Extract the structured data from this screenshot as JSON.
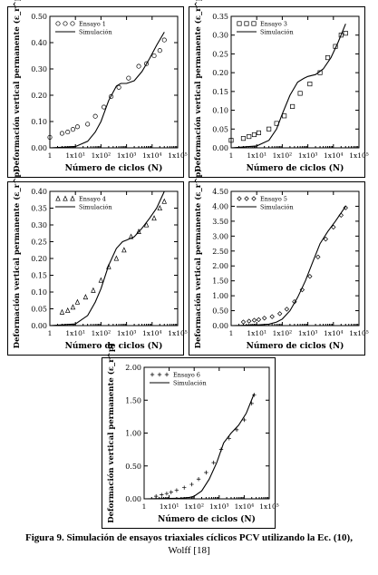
{
  "chart_data": [
    {
      "type": "line",
      "ylabel": "Deformación vertical permanente (ε_r^p)",
      "xlabel": "Número de ciclos (N)",
      "xscale": "log",
      "xlim": [
        1,
        100000
      ],
      "ylim": [
        0,
        0.5
      ],
      "yticks": [
        "0.00",
        "0.10",
        "0.20",
        "0.30",
        "0.40",
        "0.50"
      ],
      "xticks": [
        "1",
        "1x10¹",
        "1x10²",
        "1x10³",
        "1x10⁴",
        "1x10⁵"
      ],
      "legend_position": "top-left",
      "series": [
        {
          "name": "Ensayo 1",
          "marker": "circle",
          "x": [
            1,
            3,
            5,
            8,
            12,
            30,
            60,
            130,
            250,
            500,
            1200,
            3000,
            6000,
            12000,
            20000,
            30000
          ],
          "y": [
            0.04,
            0.055,
            0.06,
            0.07,
            0.08,
            0.09,
            0.12,
            0.155,
            0.195,
            0.23,
            0.265,
            0.31,
            0.32,
            0.35,
            0.37,
            0.41
          ]
        },
        {
          "name": "Simulación",
          "marker": "line",
          "x": [
            1,
            10,
            30,
            60,
            100,
            200,
            400,
            600,
            1000,
            2000,
            4000,
            8000,
            15000,
            30000
          ],
          "y": [
            0.0,
            0.005,
            0.025,
            0.06,
            0.1,
            0.18,
            0.235,
            0.245,
            0.245,
            0.255,
            0.29,
            0.34,
            0.39,
            0.44
          ]
        }
      ]
    },
    {
      "type": "line",
      "ylabel": "Deformación vertical permanente (ε_r^p)",
      "xlabel": "Número de ciclos (N)",
      "xscale": "log",
      "xlim": [
        1,
        100000
      ],
      "ylim": [
        0,
        0.35
      ],
      "yticks": [
        "0.00",
        "0.05",
        "0.10",
        "0.15",
        "0.20",
        "0.25",
        "0.30",
        "0.35"
      ],
      "xticks": [
        "1",
        "1x10¹",
        "1x10²",
        "1x10³",
        "1x10⁴",
        "1x10⁵"
      ],
      "legend_position": "top-left",
      "series": [
        {
          "name": "Ensayo 3",
          "marker": "square",
          "x": [
            1,
            3,
            5,
            8,
            12,
            30,
            60,
            120,
            250,
            500,
            1200,
            3000,
            6000,
            12000,
            20000,
            30000
          ],
          "y": [
            0.02,
            0.025,
            0.03,
            0.035,
            0.04,
            0.05,
            0.065,
            0.085,
            0.11,
            0.145,
            0.17,
            0.2,
            0.24,
            0.27,
            0.3,
            0.305
          ]
        },
        {
          "name": "Simulación",
          "marker": "line",
          "x": [
            1,
            10,
            30,
            60,
            100,
            200,
            400,
            700,
            1000,
            2000,
            4000,
            8000,
            15000,
            30000
          ],
          "y": [
            0.0,
            0.005,
            0.02,
            0.05,
            0.09,
            0.14,
            0.175,
            0.185,
            0.19,
            0.195,
            0.21,
            0.24,
            0.28,
            0.33
          ]
        }
      ]
    },
    {
      "type": "line",
      "ylabel": "Deformación vertical permanente (ε_r^p)",
      "xlabel": "Número de ciclos (N)",
      "xscale": "log",
      "xlim": [
        1,
        100000
      ],
      "ylim": [
        0,
        0.4
      ],
      "yticks": [
        "0.00",
        "0.05",
        "0.10",
        "0.15",
        "0.20",
        "0.25",
        "0.30",
        "0.35",
        "0.40"
      ],
      "xticks": [
        "1",
        "1x10¹",
        "1x10²",
        "1x10³",
        "1x10⁴",
        "1x10⁵"
      ],
      "legend_position": "top-left",
      "series": [
        {
          "name": "Ensayo 4",
          "marker": "triangle",
          "x": [
            3,
            5,
            8,
            12,
            25,
            50,
            100,
            200,
            400,
            800,
            1500,
            3000,
            6000,
            12000,
            20000,
            30000
          ],
          "y": [
            0.04,
            0.045,
            0.055,
            0.07,
            0.085,
            0.105,
            0.135,
            0.175,
            0.2,
            0.225,
            0.265,
            0.28,
            0.3,
            0.32,
            0.35,
            0.37
          ]
        },
        {
          "name": "Simulación",
          "marker": "line",
          "x": [
            1,
            10,
            30,
            60,
            100,
            200,
            400,
            700,
            1000,
            2000,
            4000,
            8000,
            15000,
            30000
          ],
          "y": [
            0.0,
            0.005,
            0.03,
            0.07,
            0.11,
            0.18,
            0.23,
            0.25,
            0.255,
            0.265,
            0.29,
            0.32,
            0.35,
            0.4
          ]
        }
      ]
    },
    {
      "type": "line",
      "ylabel": "Deformación vertical permanente (ε_r^p)",
      "xlabel": "Número de ciclos (N)",
      "xscale": "log",
      "xlim": [
        1,
        100000
      ],
      "ylim": [
        0,
        4.5
      ],
      "yticks": [
        "0.00",
        "0.50",
        "1.00",
        "1.50",
        "2.00",
        "2.50",
        "3.00",
        "3.50",
        "4.00",
        "4.50"
      ],
      "xticks": [
        "1",
        "1x10¹",
        "1x10²",
        "1x10³",
        "1x10⁴",
        "1x10⁵"
      ],
      "legend_position": "top-left",
      "series": [
        {
          "name": "Ensayo 5",
          "marker": "diamond",
          "x": [
            3,
            5,
            8,
            12,
            20,
            40,
            80,
            150,
            300,
            600,
            1200,
            2500,
            5000,
            10000,
            20000,
            30000
          ],
          "y": [
            0.12,
            0.15,
            0.18,
            0.2,
            0.25,
            0.3,
            0.4,
            0.55,
            0.8,
            1.2,
            1.65,
            2.3,
            2.9,
            3.3,
            3.7,
            3.95
          ]
        },
        {
          "name": "Simulación",
          "marker": "line",
          "x": [
            1,
            10,
            30,
            60,
            100,
            200,
            400,
            800,
            1500,
            3000,
            6000,
            12000,
            30000
          ],
          "y": [
            0.0,
            0.02,
            0.05,
            0.12,
            0.22,
            0.5,
            0.95,
            1.5,
            2.1,
            2.75,
            3.15,
            3.5,
            4.0
          ]
        }
      ]
    },
    {
      "type": "line",
      "ylabel": "Deformación vertical permanente (ε_r^p)",
      "xlabel": "Número de ciclos (N)",
      "xscale": "log",
      "xlim": [
        1,
        100000
      ],
      "ylim": [
        0,
        2.0
      ],
      "yticks": [
        "0.00",
        "0.50",
        "1.00",
        "1.50",
        "2.00"
      ],
      "xticks": [
        "1",
        "1x10¹",
        "1x10²",
        "1x10³",
        "1x10⁴",
        "1x10⁵"
      ],
      "legend_position": "top-left",
      "series": [
        {
          "name": "Ensayo 6",
          "marker": "plus",
          "x": [
            3,
            5,
            8,
            12,
            20,
            40,
            80,
            150,
            300,
            600,
            1200,
            2500,
            5000,
            10000,
            20000,
            25000
          ],
          "y": [
            0.04,
            0.06,
            0.08,
            0.1,
            0.13,
            0.17,
            0.22,
            0.3,
            0.4,
            0.55,
            0.75,
            0.92,
            1.05,
            1.2,
            1.45,
            1.58
          ]
        },
        {
          "name": "Simulación",
          "marker": "line",
          "x": [
            1,
            10,
            30,
            60,
            100,
            200,
            400,
            800,
            1500,
            3000,
            6000,
            12000,
            25000
          ],
          "y": [
            0.0,
            0.005,
            0.01,
            0.02,
            0.04,
            0.12,
            0.3,
            0.55,
            0.85,
            1.0,
            1.12,
            1.3,
            1.6
          ]
        }
      ]
    }
  ],
  "caption": {
    "line1": "Figura 9. Simulación de ensayos triaxiales cíclicos PCV utilizando la Ec. (10),",
    "line2": "Wolff [18]"
  }
}
